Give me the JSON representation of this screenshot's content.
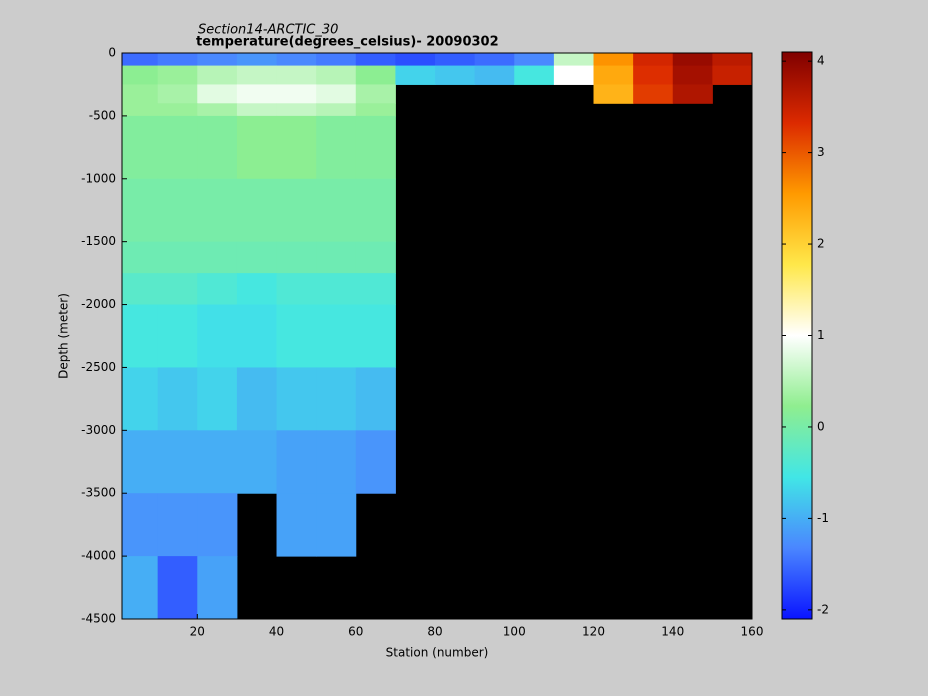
{
  "chart_data": {
    "type": "heatmap",
    "title": "Section14-ARCTIC_30",
    "subtitle": "temperature(degrees_celsius)- 20090302",
    "x_label": "Station (number)",
    "y_label": "Depth (meter)",
    "xlim": [
      1,
      160
    ],
    "ylim": [
      -4500,
      0
    ],
    "xticks": [
      20,
      40,
      60,
      80,
      100,
      120,
      140,
      160
    ],
    "yticks": [
      0,
      -500,
      -1000,
      -1500,
      -2000,
      -2500,
      -3000,
      -3500,
      -4000,
      -4500
    ],
    "x_bins": [
      1,
      10,
      20,
      30,
      40,
      50,
      60,
      70,
      80,
      90,
      100,
      110,
      120,
      130,
      140,
      150,
      160
    ],
    "y_bins": [
      0,
      -100,
      -250,
      -400,
      -500,
      -1000,
      -1500,
      -1750,
      -2000,
      -2500,
      -3000,
      -3500,
      -4000,
      -4500
    ],
    "z": [
      [
        -1.5,
        -1.4,
        -1.3,
        -1.2,
        -1.3,
        -1.4,
        -1.6,
        -1.7,
        -1.6,
        -1.5,
        -1.3,
        0.6,
        2.6,
        3.4,
        3.9,
        3.6
      ],
      [
        0.2,
        0.3,
        0.5,
        0.6,
        0.6,
        0.5,
        0.2,
        -0.7,
        -0.8,
        -0.9,
        -0.5,
        1.0,
        2.4,
        3.3,
        3.8,
        3.5
      ],
      [
        0.3,
        0.4,
        0.8,
        0.9,
        0.9,
        0.8,
        0.4,
        null,
        null,
        null,
        null,
        null,
        2.3,
        3.2,
        3.7,
        null
      ],
      [
        0.3,
        0.3,
        0.4,
        0.6,
        0.6,
        0.5,
        0.3,
        null,
        null,
        null,
        null,
        null,
        null,
        null,
        null,
        null
      ],
      [
        0.1,
        0.1,
        0.1,
        0.2,
        0.2,
        0.1,
        0.1,
        null,
        null,
        null,
        null,
        null,
        null,
        null,
        null,
        null
      ],
      [
        0.0,
        0.0,
        0.0,
        0.0,
        0.0,
        0.0,
        0.0,
        null,
        null,
        null,
        null,
        null,
        null,
        null,
        null,
        null
      ],
      [
        -0.1,
        -0.1,
        -0.1,
        -0.1,
        -0.1,
        -0.1,
        -0.1,
        null,
        null,
        null,
        null,
        null,
        null,
        null,
        null,
        null
      ],
      [
        -0.3,
        -0.3,
        -0.4,
        -0.5,
        -0.4,
        -0.4,
        -0.4,
        null,
        null,
        null,
        null,
        null,
        null,
        null,
        null,
        null
      ],
      [
        -0.5,
        -0.5,
        -0.6,
        -0.6,
        -0.5,
        -0.5,
        -0.5,
        null,
        null,
        null,
        null,
        null,
        null,
        null,
        null,
        null
      ],
      [
        -0.7,
        -0.8,
        -0.7,
        -0.9,
        -0.8,
        -0.8,
        -0.9,
        null,
        null,
        null,
        null,
        null,
        null,
        null,
        null,
        null
      ],
      [
        -1.0,
        -1.0,
        -1.0,
        -1.0,
        -1.1,
        -1.1,
        -1.2,
        null,
        null,
        null,
        null,
        null,
        null,
        null,
        null,
        null
      ],
      [
        -1.2,
        -1.2,
        -1.2,
        null,
        -1.1,
        -1.1,
        null,
        null,
        null,
        null,
        null,
        null,
        null,
        null,
        null,
        null
      ],
      [
        -1.0,
        -1.6,
        -1.1,
        null,
        null,
        null,
        null,
        null,
        null,
        null,
        null,
        null,
        null,
        null,
        null,
        null
      ]
    ],
    "clim": [
      -2.1,
      4.1
    ],
    "cticks": [
      -2,
      -1,
      0,
      1,
      2,
      3,
      4
    ],
    "colormap": [
      "#0a14ff",
      "#4a86ff",
      "#41e6e6",
      "#8fee8f",
      "#ffffff",
      "#ffe84a",
      "#ff9a00",
      "#dc2a00",
      "#800000"
    ],
    "missing_color": "#000000"
  }
}
